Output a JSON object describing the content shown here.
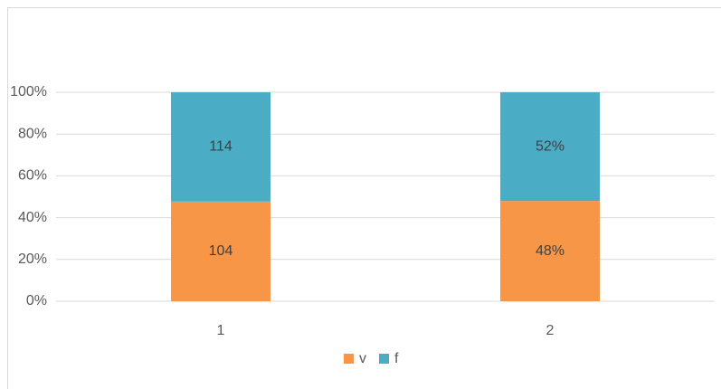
{
  "chart_data": {
    "type": "bar",
    "stack": "percent",
    "categories": [
      "1",
      "2"
    ],
    "series": [
      {
        "name": "v",
        "color": "#f79646",
        "values": [
          104,
          48
        ],
        "value_labels": [
          "104",
          "48%"
        ]
      },
      {
        "name": "f",
        "color": "#4bacc6",
        "values": [
          114,
          52
        ],
        "value_labels": [
          "114",
          "52%"
        ]
      }
    ],
    "ylim": [
      0,
      100
    ],
    "yticks": [
      {
        "value": 0,
        "label": "0%"
      },
      {
        "value": 20,
        "label": "20%"
      },
      {
        "value": 40,
        "label": "40%"
      },
      {
        "value": 60,
        "label": "60%"
      },
      {
        "value": 80,
        "label": "80%"
      },
      {
        "value": 100,
        "label": "100%"
      }
    ],
    "grid": true,
    "legend": "bottom"
  }
}
